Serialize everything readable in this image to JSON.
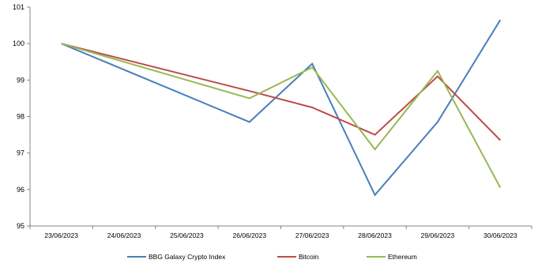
{
  "chart_data": {
    "type": "line",
    "title": "",
    "xlabel": "",
    "ylabel": "",
    "categories": [
      "23/06/2023",
      "24/06/2023",
      "25/06/2023",
      "26/06/2023",
      "27/06/2023",
      "28/06/2023",
      "29/06/2023",
      "30/06/2023"
    ],
    "ylim": [
      95,
      101
    ],
    "yticks": [
      95,
      96,
      97,
      98,
      99,
      100,
      101
    ],
    "grid": false,
    "legend_position": "bottom",
    "series": [
      {
        "name": "BBG Galaxy Crypto Index",
        "color": "#4a7ebb",
        "values": [
          100.0,
          null,
          null,
          97.85,
          99.45,
          95.85,
          97.85,
          100.65
        ]
      },
      {
        "name": "Bitcoin",
        "color": "#be4b48",
        "values": [
          100.0,
          null,
          null,
          98.7,
          98.25,
          97.5,
          99.1,
          97.35
        ]
      },
      {
        "name": "Ethereum",
        "color": "#98b954",
        "values": [
          100.0,
          null,
          null,
          98.5,
          99.35,
          97.1,
          99.25,
          96.05
        ]
      }
    ]
  }
}
